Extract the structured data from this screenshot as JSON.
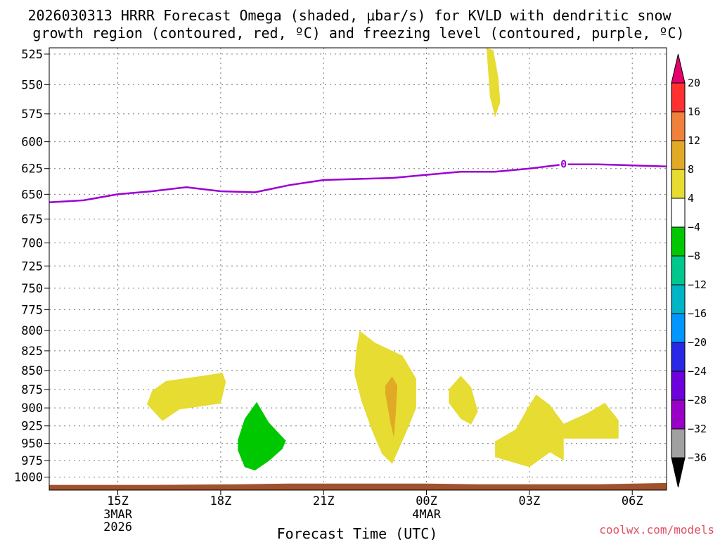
{
  "chart_data": {
    "type": "time-height contour",
    "title_line1": "2026030313 HRRR Forecast Omega (shaded, μbar/s) for KVLD with dendritic snow",
    "title_line2": "growth region (contoured, red, ºC) and freezing level (contoured, purple, ºC)",
    "xlabel": "Forecast Time (UTC)",
    "credit": "coolwx.com/models",
    "x_range_hours": [
      13,
      31
    ],
    "y_range_hpa": [
      1020,
      520
    ],
    "y_ticks": [
      525,
      550,
      575,
      600,
      625,
      650,
      675,
      700,
      725,
      750,
      775,
      800,
      825,
      850,
      875,
      900,
      925,
      950,
      975,
      1000
    ],
    "x_ticks": [
      {
        "hour": 15,
        "label": "15Z",
        "sub1": "3MAR",
        "sub2": "2026"
      },
      {
        "hour": 18,
        "label": "18Z",
        "sub1": "",
        "sub2": ""
      },
      {
        "hour": 21,
        "label": "21Z",
        "sub1": "",
        "sub2": ""
      },
      {
        "hour": 24,
        "label": "00Z",
        "sub1": "4MAR",
        "sub2": ""
      },
      {
        "hour": 27,
        "label": "03Z",
        "sub1": "",
        "sub2": ""
      },
      {
        "hour": 30,
        "label": "06Z",
        "sub1": "",
        "sub2": ""
      }
    ],
    "freezing_level": {
      "label": "0",
      "label_at": [
        28.0,
        621
      ],
      "color": "#9b00d3",
      "points": [
        [
          13,
          658
        ],
        [
          14,
          656
        ],
        [
          15,
          650
        ],
        [
          16,
          647
        ],
        [
          17,
          643
        ],
        [
          18,
          647
        ],
        [
          19,
          648
        ],
        [
          20,
          641
        ],
        [
          21,
          636
        ],
        [
          22,
          635
        ],
        [
          23,
          634
        ],
        [
          24,
          631
        ],
        [
          25,
          628
        ],
        [
          26,
          628
        ],
        [
          27,
          625
        ],
        [
          28,
          621
        ],
        [
          29,
          621
        ],
        [
          30,
          622
        ],
        [
          31,
          623
        ]
      ]
    },
    "terrain": {
      "color": "#a0522d",
      "points": [
        [
          13,
          1012
        ],
        [
          16,
          1012
        ],
        [
          18.5,
          1011
        ],
        [
          20,
          1010
        ],
        [
          22,
          1010
        ],
        [
          24,
          1010
        ],
        [
          25.5,
          1011
        ],
        [
          27,
          1011
        ],
        [
          29,
          1011
        ],
        [
          31,
          1009
        ]
      ]
    },
    "omega_regions": [
      {
        "name": "yellow-upper-1",
        "value": 4,
        "color": "#e6dc32",
        "points": [
          [
            25.75,
            520
          ],
          [
            25.95,
            522
          ],
          [
            26.1,
            545
          ],
          [
            26.15,
            565
          ],
          [
            26.0,
            578
          ],
          [
            25.85,
            560
          ],
          [
            25.8,
            540
          ],
          [
            25.75,
            520
          ]
        ]
      },
      {
        "name": "yellow-left-1",
        "value": 4,
        "color": "#e6dc32",
        "points": [
          [
            16.0,
            877
          ],
          [
            16.4,
            864
          ],
          [
            17.5,
            857
          ],
          [
            18.05,
            853
          ],
          [
            18.15,
            865
          ],
          [
            18.0,
            894
          ],
          [
            16.8,
            902
          ],
          [
            16.3,
            918
          ],
          [
            15.85,
            895
          ],
          [
            16.0,
            877
          ]
        ]
      },
      {
        "name": "yellow-center-1",
        "value": 4,
        "color": "#e6dc32",
        "points": [
          [
            22.05,
            800
          ],
          [
            22.5,
            815
          ],
          [
            23.3,
            831
          ],
          [
            23.7,
            861
          ],
          [
            23.7,
            900
          ],
          [
            23.4,
            935
          ],
          [
            23.0,
            980
          ],
          [
            22.7,
            965
          ],
          [
            22.4,
            930
          ],
          [
            22.1,
            890
          ],
          [
            21.9,
            855
          ],
          [
            21.95,
            825
          ],
          [
            22.05,
            800
          ]
        ]
      },
      {
        "name": "orange-center-1",
        "value": 8,
        "color": "#e1a925",
        "points": [
          [
            22.8,
            870
          ],
          [
            23.0,
            858
          ],
          [
            23.15,
            870
          ],
          [
            23.1,
            910
          ],
          [
            23.05,
            942
          ],
          [
            22.95,
            920
          ],
          [
            22.8,
            880
          ],
          [
            22.8,
            870
          ]
        ]
      },
      {
        "name": "yellow-right-small",
        "value": 4,
        "color": "#e6dc32",
        "points": [
          [
            24.65,
            875
          ],
          [
            25.0,
            857
          ],
          [
            25.3,
            872
          ],
          [
            25.5,
            905
          ],
          [
            25.3,
            923
          ],
          [
            25.0,
            915
          ],
          [
            24.65,
            893
          ],
          [
            24.65,
            875
          ]
        ]
      },
      {
        "name": "yellow-right-large",
        "value": 4,
        "color": "#e6dc32",
        "points": [
          [
            26.0,
            947
          ],
          [
            26.6,
            930
          ],
          [
            27.0,
            896
          ],
          [
            27.2,
            882
          ],
          [
            27.6,
            896
          ],
          [
            28.0,
            922
          ],
          [
            28.7,
            907
          ],
          [
            29.2,
            893
          ],
          [
            29.6,
            917
          ],
          [
            29.6,
            943
          ],
          [
            28.0,
            943
          ],
          [
            28.0,
            975
          ],
          [
            27.6,
            963
          ],
          [
            27.0,
            985
          ],
          [
            26.0,
            970
          ],
          [
            26.0,
            947
          ]
        ]
      },
      {
        "name": "green-sink-1",
        "value": -8,
        "color": "#00c800",
        "points": [
          [
            18.5,
            945
          ],
          [
            18.7,
            915
          ],
          [
            19.05,
            892
          ],
          [
            19.4,
            920
          ],
          [
            19.9,
            946
          ],
          [
            19.8,
            958
          ],
          [
            19.4,
            976
          ],
          [
            19.0,
            990
          ],
          [
            18.7,
            985
          ],
          [
            18.5,
            960
          ],
          [
            18.5,
            945
          ]
        ]
      }
    ],
    "colorbar": {
      "labels": [
        "20",
        "16",
        "12",
        "8",
        "4",
        "−4",
        "−8",
        "−12",
        "−16",
        "−20",
        "−24",
        "−28",
        "−32",
        "−36"
      ],
      "colors": [
        "#ff3030",
        "#f0803c",
        "#e1a925",
        "#e6dc32",
        "#ffffff",
        "#00c800",
        "#00c88c",
        "#00b4c8",
        "#0096ff",
        "#2828e6",
        "#6e00dc",
        "#9b00c8",
        "#a0a0a0"
      ],
      "top_arrow": "#e6006e",
      "bottom_arrow": "#000000"
    }
  }
}
